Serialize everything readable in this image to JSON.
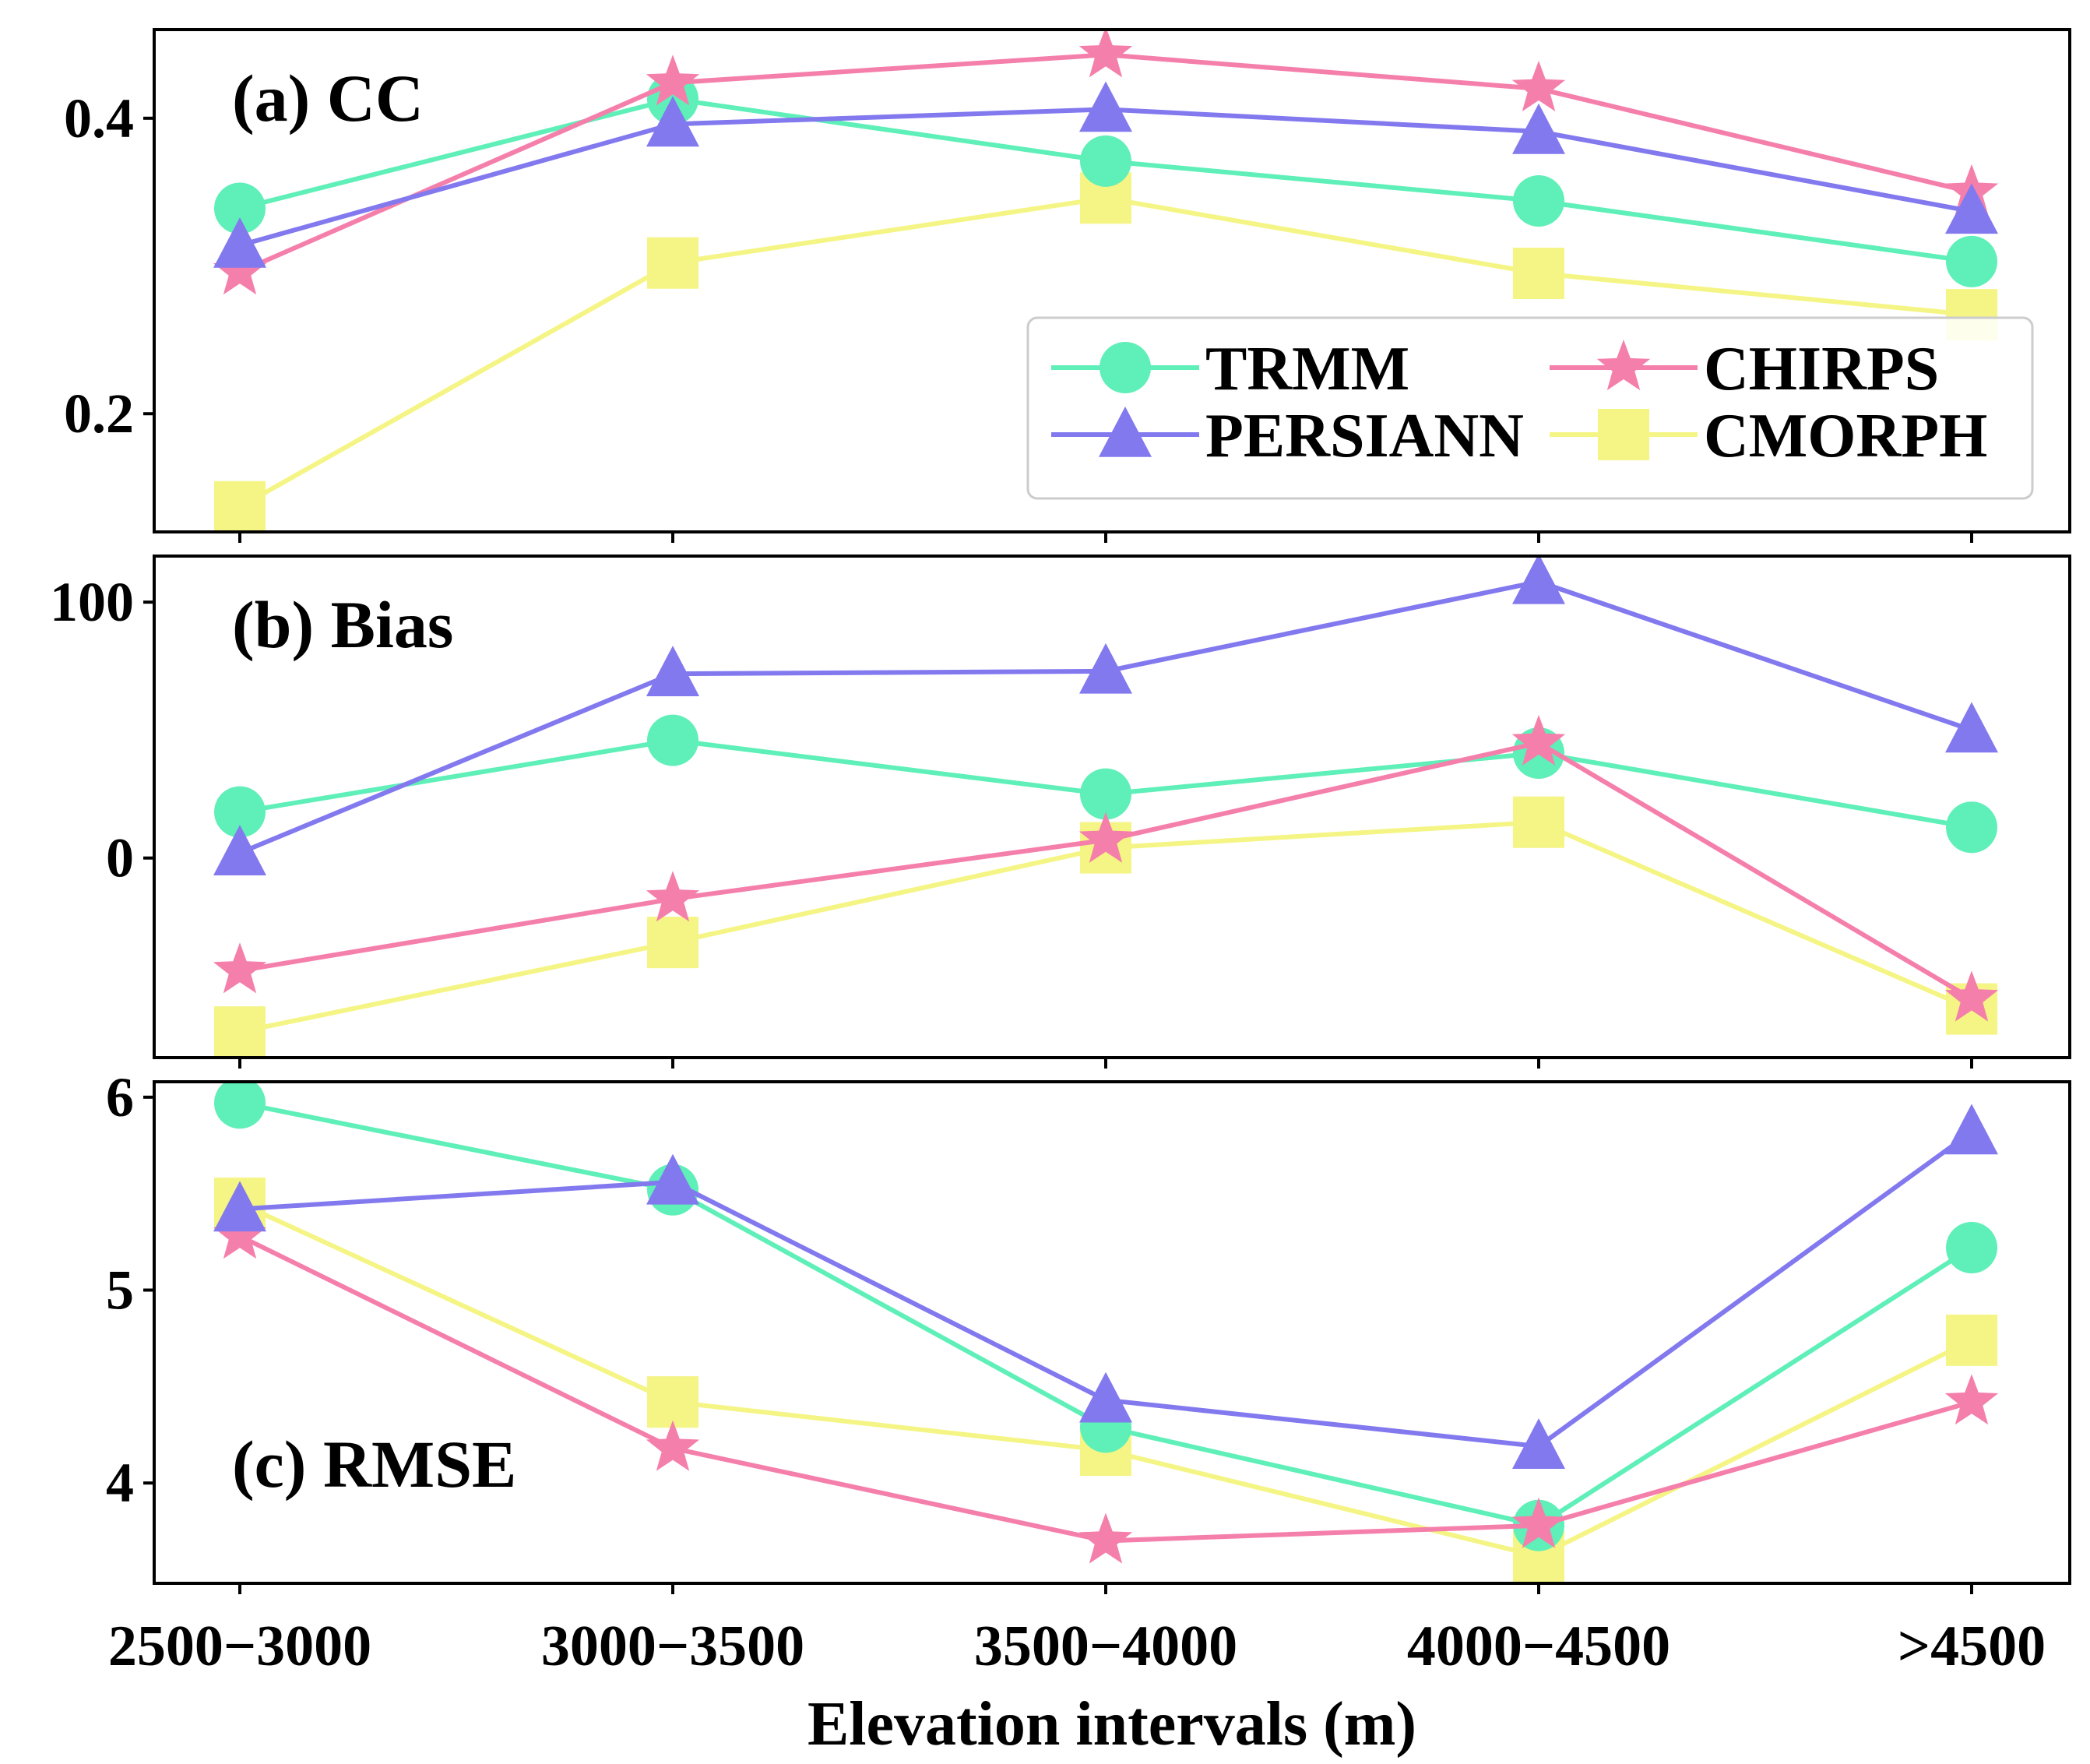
{
  "colors": {
    "TRMM": "#5fefb8",
    "PERSIANN": "#8379ef",
    "CHIRPS": "#f57fab",
    "CMORPH": "#f4f584"
  },
  "legend": [
    {
      "name": "TRMM",
      "marker": "circle"
    },
    {
      "name": "CHIRPS",
      "marker": "star"
    },
    {
      "name": "PERSIANN",
      "marker": "triangle"
    },
    {
      "name": "CMORPH",
      "marker": "square"
    }
  ],
  "xlabel": "Elevation intervals (m)",
  "chart_data": [
    {
      "type": "line",
      "title": "(a) CC",
      "categories": [
        "2500−3000",
        "3000−3500",
        "3500−4000",
        "4000−4500",
        ">4500"
      ],
      "ylim": [
        0.12,
        0.46
      ],
      "yticks": [
        0.2,
        0.4
      ],
      "ytick_labels": [
        "0.2",
        "0.4"
      ],
      "legend_position": "lower-right",
      "series": [
        {
          "name": "TRMM",
          "marker": "circle",
          "values": [
            0.339,
            0.413,
            0.371,
            0.344,
            0.303
          ]
        },
        {
          "name": "PERSIANN",
          "marker": "triangle",
          "values": [
            0.314,
            0.396,
            0.406,
            0.391,
            0.337
          ]
        },
        {
          "name": "CHIRPS",
          "marker": "star",
          "values": [
            0.296,
            0.424,
            0.443,
            0.42,
            0.35
          ]
        },
        {
          "name": "CMORPH",
          "marker": "square",
          "values": [
            0.137,
            0.302,
            0.346,
            0.295,
            0.267
          ]
        }
      ]
    },
    {
      "type": "line",
      "title": "(b) Bias",
      "categories": [
        "2500−3000",
        "3000−3500",
        "3500−4000",
        "4000−4500",
        ">4500"
      ],
      "ylim": [
        -78,
        118
      ],
      "yticks": [
        0,
        100
      ],
      "ytick_labels": [
        "0",
        "100"
      ],
      "series": [
        {
          "name": "TRMM",
          "marker": "circle",
          "values": [
            18,
            46,
            25,
            41,
            12
          ]
        },
        {
          "name": "PERSIANN",
          "marker": "triangle",
          "values": [
            2,
            72,
            73,
            108,
            50
          ]
        },
        {
          "name": "CHIRPS",
          "marker": "star",
          "values": [
            -44,
            -16,
            7,
            45,
            -55
          ]
        },
        {
          "name": "CMORPH",
          "marker": "square",
          "values": [
            -68,
            -33,
            4,
            14,
            -59
          ]
        }
      ]
    },
    {
      "type": "line",
      "title": "(c) RMSE",
      "categories": [
        "2500−3000",
        "3000−3500",
        "3500−4000",
        "4000−4500",
        ">4500"
      ],
      "ylim": [
        3.48,
        6.08
      ],
      "yticks": [
        4,
        5,
        6
      ],
      "ytick_labels": [
        "4",
        "5",
        "6"
      ],
      "series": [
        {
          "name": "TRMM",
          "marker": "circle",
          "values": [
            5.97,
            5.52,
            4.29,
            3.78,
            5.22
          ]
        },
        {
          "name": "PERSIANN",
          "marker": "triangle",
          "values": [
            5.42,
            5.56,
            4.43,
            4.19,
            5.82
          ]
        },
        {
          "name": "CHIRPS",
          "marker": "star",
          "values": [
            5.28,
            4.18,
            3.7,
            3.78,
            4.42
          ]
        },
        {
          "name": "CMORPH",
          "marker": "square",
          "values": [
            5.45,
            4.42,
            4.17,
            3.62,
            4.74
          ]
        }
      ]
    }
  ]
}
